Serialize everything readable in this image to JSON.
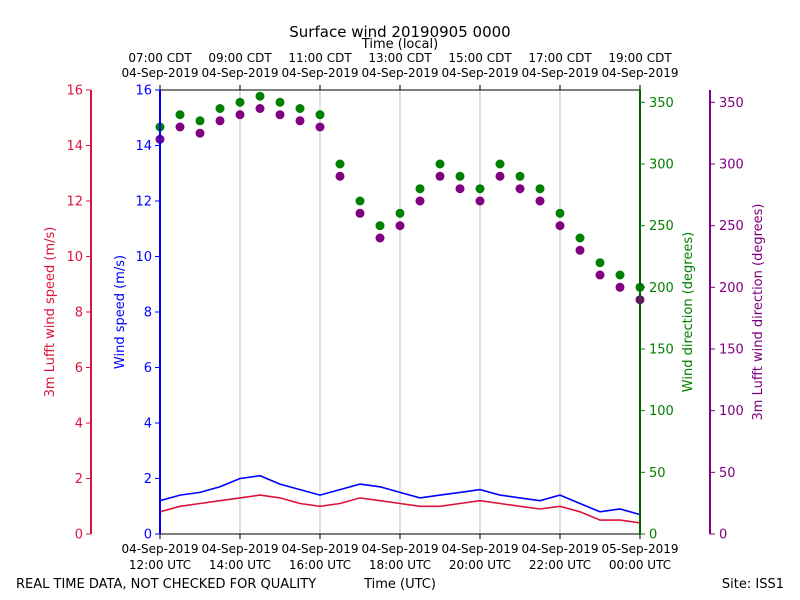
{
  "chart_data": {
    "type": "scatter",
    "title": "Surface wind 20190905 0000",
    "top_axis_label": "Time (local)",
    "xlabel": "Time (UTC)",
    "footer_left": "REAL TIME DATA, NOT CHECKED FOR QUALITY",
    "footer_right": "Site: ISS1",
    "x_range_hours_utc": [
      12,
      24
    ],
    "bottom_ticks": [
      {
        "h": 12,
        "date": "04-Sep-2019",
        "time": "12:00 UTC"
      },
      {
        "h": 14,
        "date": "04-Sep-2019",
        "time": "14:00 UTC"
      },
      {
        "h": 16,
        "date": "04-Sep-2019",
        "time": "16:00 UTC"
      },
      {
        "h": 18,
        "date": "04-Sep-2019",
        "time": "18:00 UTC"
      },
      {
        "h": 20,
        "date": "04-Sep-2019",
        "time": "20:00 UTC"
      },
      {
        "h": 22,
        "date": "04-Sep-2019",
        "time": "22:00 UTC"
      },
      {
        "h": 24,
        "date": "05-Sep-2019",
        "time": "00:00 UTC"
      }
    ],
    "top_ticks": [
      {
        "h": 12,
        "time": "07:00 CDT",
        "date": "04-Sep-2019"
      },
      {
        "h": 14,
        "time": "09:00 CDT",
        "date": "04-Sep-2019"
      },
      {
        "h": 16,
        "time": "11:00 CDT",
        "date": "04-Sep-2019"
      },
      {
        "h": 18,
        "time": "13:00 CDT",
        "date": "04-Sep-2019"
      },
      {
        "h": 20,
        "time": "15:00 CDT",
        "date": "04-Sep-2019"
      },
      {
        "h": 22,
        "time": "17:00 CDT",
        "date": "04-Sep-2019"
      },
      {
        "h": 24,
        "time": "19:00 CDT",
        "date": "04-Sep-2019"
      }
    ],
    "axes": {
      "lufft_speed": {
        "label": "3m Lufft wind speed (m/s)",
        "range": [
          0,
          16
        ],
        "ticks": [
          0,
          2,
          4,
          6,
          8,
          10,
          12,
          14,
          16
        ],
        "color": "#dc143c"
      },
      "wind_speed": {
        "label": "Wind speed (m/s)",
        "range": [
          0,
          16
        ],
        "ticks": [
          0,
          2,
          4,
          6,
          8,
          10,
          12,
          14,
          16
        ],
        "color": "#0000ff"
      },
      "wind_direction": {
        "label": "Wind direction (degrees)",
        "range": [
          0,
          360
        ],
        "ticks": [
          0,
          50,
          100,
          150,
          200,
          250,
          300,
          350
        ],
        "color": "#008000"
      },
      "lufft_direction": {
        "label": "3m Lufft wind direction (degrees)",
        "range": [
          0,
          360
        ],
        "ticks": [
          0,
          50,
          100,
          150,
          200,
          250,
          300,
          350
        ],
        "color": "#800080"
      }
    },
    "series": [
      {
        "name": "Wind speed",
        "axis": "wind_speed",
        "kind": "line",
        "color": "#0000ff",
        "x": [
          12.0,
          12.5,
          13.0,
          13.5,
          14.0,
          14.5,
          15.0,
          15.5,
          16.0,
          16.5,
          17.0,
          17.5,
          18.0,
          18.5,
          19.0,
          19.5,
          20.0,
          20.5,
          21.0,
          21.5,
          22.0,
          22.5,
          23.0,
          23.5,
          24.0
        ],
        "y": [
          1.2,
          1.4,
          1.5,
          1.7,
          2.0,
          2.1,
          1.8,
          1.6,
          1.4,
          1.6,
          1.8,
          1.7,
          1.5,
          1.3,
          1.4,
          1.5,
          1.6,
          1.4,
          1.3,
          1.2,
          1.4,
          1.1,
          0.8,
          0.9,
          0.7
        ]
      },
      {
        "name": "3m Lufft wind speed",
        "axis": "lufft_speed",
        "kind": "line",
        "color": "#dc143c",
        "x": [
          12.0,
          12.5,
          13.0,
          13.5,
          14.0,
          14.5,
          15.0,
          15.5,
          16.0,
          16.5,
          17.0,
          17.5,
          18.0,
          18.5,
          19.0,
          19.5,
          20.0,
          20.5,
          21.0,
          21.5,
          22.0,
          22.5,
          23.0,
          23.5,
          24.0
        ],
        "y": [
          0.8,
          1.0,
          1.1,
          1.2,
          1.3,
          1.4,
          1.3,
          1.1,
          1.0,
          1.1,
          1.3,
          1.2,
          1.1,
          1.0,
          1.0,
          1.1,
          1.2,
          1.1,
          1.0,
          0.9,
          1.0,
          0.8,
          0.5,
          0.5,
          0.4
        ]
      },
      {
        "name": "Wind direction",
        "axis": "wind_direction",
        "kind": "scatter",
        "color": "#008000",
        "x": [
          12.0,
          12.5,
          13.0,
          13.5,
          14.0,
          14.5,
          15.0,
          15.5,
          16.0,
          16.5,
          17.0,
          17.5,
          18.0,
          18.5,
          19.0,
          19.5,
          20.0,
          20.5,
          21.0,
          21.5,
          22.0,
          22.5,
          23.0,
          23.5,
          24.0
        ],
        "y": [
          330,
          340,
          335,
          345,
          350,
          355,
          350,
          345,
          340,
          300,
          270,
          250,
          260,
          280,
          300,
          290,
          280,
          300,
          290,
          280,
          260,
          240,
          220,
          210,
          200
        ]
      },
      {
        "name": "3m Lufft wind direction",
        "axis": "lufft_direction",
        "kind": "scatter",
        "color": "#800080",
        "x": [
          12.0,
          12.5,
          13.0,
          13.5,
          14.0,
          14.5,
          15.0,
          15.5,
          16.0,
          16.5,
          17.0,
          17.5,
          18.0,
          18.5,
          19.0,
          19.5,
          20.0,
          20.5,
          21.0,
          21.5,
          22.0,
          22.5,
          23.0,
          23.5,
          24.0
        ],
        "y": [
          320,
          330,
          325,
          335,
          340,
          345,
          340,
          335,
          330,
          290,
          260,
          240,
          250,
          270,
          290,
          280,
          270,
          290,
          280,
          270,
          250,
          230,
          210,
          200,
          190
        ]
      }
    ]
  }
}
